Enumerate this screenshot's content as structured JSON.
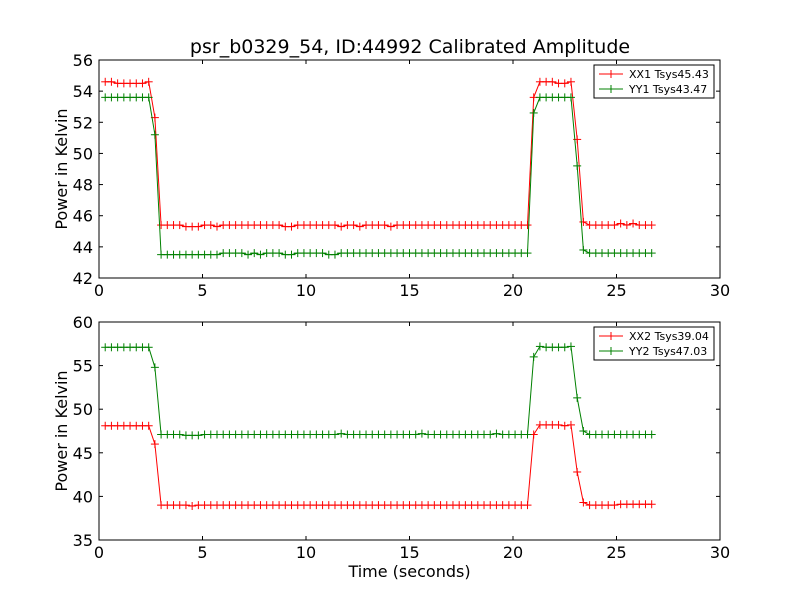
{
  "figure": {
    "title": "psr_b0329_54, ID:44992 Calibrated Amplitude",
    "background": "#ffffff"
  },
  "chart_data": [
    {
      "type": "line",
      "title": "psr_b0329_54, ID:44992 Calibrated Amplitude",
      "xlabel": "",
      "ylabel": "Power in Kelvin",
      "xlim": [
        0,
        30
      ],
      "ylim": [
        42,
        56
      ],
      "xticks": [
        0,
        5,
        10,
        15,
        20,
        25,
        30
      ],
      "yticks": [
        42,
        44,
        46,
        48,
        50,
        52,
        54,
        56
      ],
      "grid": false,
      "legend_position": "top-right",
      "x": [
        0.3,
        0.6,
        0.9,
        1.2,
        1.5,
        1.8,
        2.1,
        2.4,
        2.7,
        3.0,
        3.3,
        3.6,
        3.9,
        4.2,
        4.5,
        4.8,
        5.1,
        5.4,
        5.7,
        6.0,
        6.3,
        6.6,
        6.9,
        7.2,
        7.5,
        7.8,
        8.1,
        8.4,
        8.7,
        9.0,
        9.3,
        9.6,
        9.9,
        10.2,
        10.5,
        10.8,
        11.1,
        11.4,
        11.7,
        12.0,
        12.3,
        12.6,
        12.9,
        13.2,
        13.5,
        13.8,
        14.1,
        14.4,
        14.7,
        15.0,
        15.3,
        15.6,
        15.9,
        16.2,
        16.5,
        16.8,
        17.1,
        17.4,
        17.7,
        18.0,
        18.3,
        18.6,
        18.9,
        19.2,
        19.5,
        19.8,
        20.1,
        20.4,
        20.7,
        21.0,
        21.3,
        21.6,
        21.9,
        22.2,
        22.5,
        22.8,
        23.1,
        23.4,
        23.7,
        24.0,
        24.3,
        24.6,
        24.9,
        25.2,
        25.5,
        25.8,
        26.1,
        26.4,
        26.7
      ],
      "series": [
        {
          "name": "XX1 Tsys45.43",
          "color": "#ff0000",
          "values": [
            54.6,
            54.6,
            54.5,
            54.5,
            54.5,
            54.5,
            54.5,
            54.6,
            52.3,
            45.4,
            45.4,
            45.4,
            45.4,
            45.3,
            45.3,
            45.3,
            45.4,
            45.4,
            45.3,
            45.4,
            45.4,
            45.4,
            45.4,
            45.4,
            45.4,
            45.4,
            45.4,
            45.4,
            45.4,
            45.3,
            45.3,
            45.4,
            45.4,
            45.4,
            45.4,
            45.4,
            45.4,
            45.4,
            45.3,
            45.4,
            45.4,
            45.3,
            45.4,
            45.4,
            45.4,
            45.4,
            45.3,
            45.4,
            45.4,
            45.4,
            45.4,
            45.4,
            45.4,
            45.4,
            45.4,
            45.4,
            45.4,
            45.4,
            45.4,
            45.4,
            45.4,
            45.4,
            45.4,
            45.4,
            45.4,
            45.4,
            45.4,
            45.4,
            45.4,
            53.6,
            54.6,
            54.6,
            54.6,
            54.5,
            54.5,
            54.6,
            50.9,
            45.6,
            45.4,
            45.4,
            45.4,
            45.4,
            45.4,
            45.5,
            45.4,
            45.5,
            45.4,
            45.4,
            45.4
          ]
        },
        {
          "name": "YY1 Tsys43.47",
          "color": "#008000",
          "values": [
            53.6,
            53.6,
            53.6,
            53.6,
            53.6,
            53.6,
            53.6,
            53.6,
            51.2,
            43.5,
            43.5,
            43.5,
            43.5,
            43.5,
            43.5,
            43.5,
            43.5,
            43.5,
            43.5,
            43.6,
            43.6,
            43.6,
            43.6,
            43.5,
            43.6,
            43.5,
            43.6,
            43.6,
            43.6,
            43.5,
            43.5,
            43.6,
            43.6,
            43.6,
            43.6,
            43.6,
            43.5,
            43.5,
            43.6,
            43.6,
            43.6,
            43.6,
            43.6,
            43.6,
            43.6,
            43.6,
            43.6,
            43.6,
            43.6,
            43.6,
            43.6,
            43.6,
            43.6,
            43.6,
            43.6,
            43.6,
            43.6,
            43.6,
            43.6,
            43.6,
            43.6,
            43.6,
            43.6,
            43.6,
            43.6,
            43.6,
            43.6,
            43.6,
            43.6,
            52.6,
            53.6,
            53.6,
            53.6,
            53.6,
            53.6,
            53.6,
            49.2,
            43.8,
            43.6,
            43.6,
            43.6,
            43.6,
            43.6,
            43.6,
            43.6,
            43.6,
            43.6,
            43.6,
            43.6
          ]
        }
      ]
    },
    {
      "type": "line",
      "title": "",
      "xlabel": "Time (seconds)",
      "ylabel": "Power in Kelvin",
      "xlim": [
        0,
        30
      ],
      "ylim": [
        35,
        60
      ],
      "xticks": [
        0,
        5,
        10,
        15,
        20,
        25,
        30
      ],
      "yticks": [
        35,
        40,
        45,
        50,
        55,
        60
      ],
      "grid": false,
      "legend_position": "top-right",
      "x": [
        0.3,
        0.6,
        0.9,
        1.2,
        1.5,
        1.8,
        2.1,
        2.4,
        2.7,
        3.0,
        3.3,
        3.6,
        3.9,
        4.2,
        4.5,
        4.8,
        5.1,
        5.4,
        5.7,
        6.0,
        6.3,
        6.6,
        6.9,
        7.2,
        7.5,
        7.8,
        8.1,
        8.4,
        8.7,
        9.0,
        9.3,
        9.6,
        9.9,
        10.2,
        10.5,
        10.8,
        11.1,
        11.4,
        11.7,
        12.0,
        12.3,
        12.6,
        12.9,
        13.2,
        13.5,
        13.8,
        14.1,
        14.4,
        14.7,
        15.0,
        15.3,
        15.6,
        15.9,
        16.2,
        16.5,
        16.8,
        17.1,
        17.4,
        17.7,
        18.0,
        18.3,
        18.6,
        18.9,
        19.2,
        19.5,
        19.8,
        20.1,
        20.4,
        20.7,
        21.0,
        21.3,
        21.6,
        21.9,
        22.2,
        22.5,
        22.8,
        23.1,
        23.4,
        23.7,
        24.0,
        24.3,
        24.6,
        24.9,
        25.2,
        25.5,
        25.8,
        26.1,
        26.4,
        26.7
      ],
      "series": [
        {
          "name": "XX2 Tsys39.04",
          "color": "#ff0000",
          "values": [
            48.1,
            48.1,
            48.1,
            48.1,
            48.1,
            48.1,
            48.1,
            48.1,
            46.0,
            39.0,
            39.0,
            39.0,
            39.0,
            39.0,
            38.9,
            39.0,
            39.0,
            39.0,
            39.0,
            39.0,
            39.0,
            39.0,
            39.0,
            39.0,
            39.0,
            39.0,
            39.0,
            39.0,
            39.0,
            39.0,
            39.0,
            39.0,
            39.0,
            39.0,
            39.0,
            39.0,
            39.0,
            39.0,
            39.0,
            39.0,
            39.0,
            39.0,
            39.0,
            39.0,
            39.0,
            39.0,
            39.0,
            39.0,
            39.0,
            39.0,
            39.0,
            39.0,
            39.0,
            39.0,
            39.0,
            39.0,
            39.0,
            39.0,
            39.0,
            39.0,
            39.0,
            39.0,
            39.0,
            39.0,
            39.0,
            39.0,
            39.0,
            39.0,
            39.0,
            47.1,
            48.2,
            48.2,
            48.2,
            48.2,
            48.1,
            48.2,
            42.8,
            39.3,
            39.0,
            39.0,
            39.0,
            39.0,
            39.0,
            39.1,
            39.1,
            39.1,
            39.1,
            39.1,
            39.1
          ]
        },
        {
          "name": "YY2 Tsys47.03",
          "color": "#008000",
          "values": [
            57.1,
            57.1,
            57.1,
            57.1,
            57.1,
            57.1,
            57.1,
            57.1,
            54.8,
            47.1,
            47.1,
            47.1,
            47.1,
            47.0,
            47.0,
            47.0,
            47.1,
            47.1,
            47.1,
            47.1,
            47.1,
            47.1,
            47.1,
            47.1,
            47.1,
            47.1,
            47.1,
            47.1,
            47.1,
            47.1,
            47.1,
            47.1,
            47.1,
            47.1,
            47.1,
            47.1,
            47.1,
            47.1,
            47.2,
            47.1,
            47.1,
            47.1,
            47.1,
            47.1,
            47.1,
            47.1,
            47.1,
            47.1,
            47.1,
            47.1,
            47.1,
            47.2,
            47.1,
            47.1,
            47.1,
            47.1,
            47.1,
            47.1,
            47.1,
            47.1,
            47.1,
            47.1,
            47.1,
            47.2,
            47.1,
            47.1,
            47.1,
            47.1,
            47.1,
            56.0,
            57.2,
            57.1,
            57.1,
            57.1,
            57.1,
            57.2,
            51.3,
            47.5,
            47.1,
            47.1,
            47.1,
            47.1,
            47.1,
            47.1,
            47.1,
            47.1,
            47.1,
            47.1,
            47.1
          ]
        }
      ]
    }
  ]
}
